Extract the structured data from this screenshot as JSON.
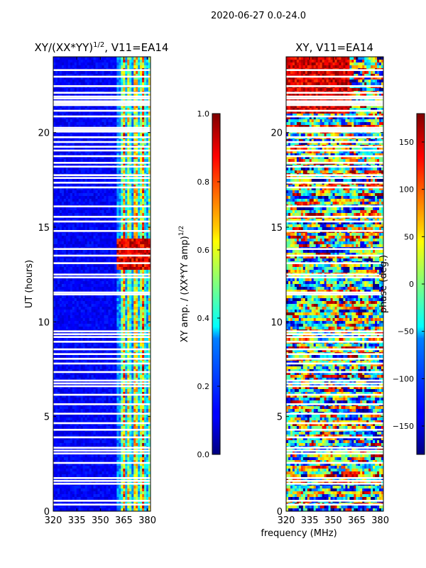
{
  "figure": {
    "suptitle": "2020-06-27 0.0-24.0",
    "shared_xlabel": "frequency (MHz)"
  },
  "chart_data": [
    {
      "type": "heatmap",
      "title": "XY/(XX*YY)^1/2, V11=EA14",
      "title_main": "XY/(XX*YY)",
      "title_exp": "1/2",
      "title_suffix": ", V11=EA14",
      "xlabel": "",
      "ylabel": "UT (hours)",
      "xlim": [
        320,
        382
      ],
      "ylim": [
        0,
        24
      ],
      "xticks": [
        320,
        335,
        350,
        365,
        380
      ],
      "yticks": [
        0,
        5,
        10,
        15,
        20
      ],
      "colormap": "jet",
      "colorbar": {
        "label_main": "XY amp. / (XX*YY amp)",
        "label_exp": "1/2",
        "min": 0.0,
        "max": 1.0,
        "ticks": [
          "0.0",
          "0.2",
          "0.4",
          "0.6",
          "0.8",
          "1.0"
        ]
      }
    },
    {
      "type": "heatmap",
      "title": "XY, V11=EA14",
      "xlabel": "frequency (MHz)",
      "ylabel": "",
      "xlim": [
        320,
        382
      ],
      "ylim": [
        0,
        24
      ],
      "xticks": [
        320,
        335,
        350,
        365,
        380
      ],
      "yticks": [
        0,
        5,
        10,
        15,
        20
      ],
      "colormap": "jet",
      "colorbar": {
        "label": "phase (deg.)",
        "min": -180,
        "max": 180,
        "ticks": [
          "-150",
          "-100",
          "-50",
          "0",
          "50",
          "100",
          "150"
        ]
      }
    }
  ],
  "flagged_hours": [
    0.35,
    0.55,
    1.45,
    1.6,
    1.75,
    2.55,
    3.05,
    3.2,
    3.35,
    3.9,
    4.3,
    4.65,
    5.15,
    5.65,
    6.15,
    6.6,
    6.75,
    6.9,
    7.35,
    7.8,
    8.05,
    8.3,
    8.55,
    8.95,
    9.2,
    9.35,
    9.5,
    11.45,
    11.55,
    12.35,
    12.5,
    13.1,
    13.5,
    13.85,
    14.8,
    15.3,
    15.55,
    16.1,
    17.1,
    17.35,
    17.6,
    17.75,
    18.2,
    18.4,
    18.75,
    19.05,
    19.25,
    19.5,
    19.75,
    20.05,
    20.15,
    20.25,
    20.85,
    21.15,
    21.45,
    21.55,
    21.65,
    21.8,
    21.9,
    22.1,
    22.45,
    22.95,
    23.3
  ]
}
